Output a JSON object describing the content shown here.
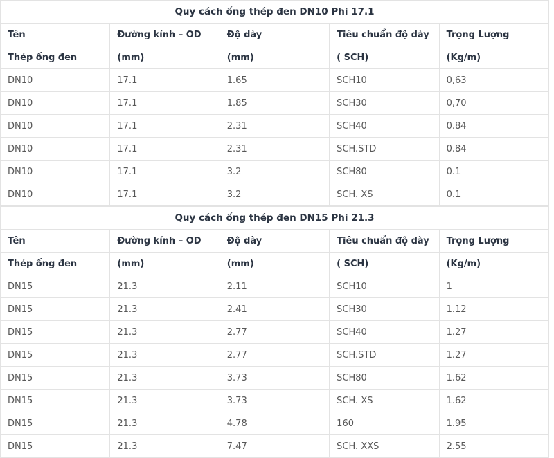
{
  "page": {
    "background_color": "#ffffff",
    "border_color": "#e3e3e3",
    "heading_text_color": "#2b3442",
    "body_text_color": "#575757"
  },
  "tables": [
    {
      "title": "Quy cách ống thép đen DN10 Phi 17.1",
      "header_row1": [
        "Tên",
        "Đường kính – OD",
        "Độ dày",
        "Tiêu chuẩn độ dày",
        "Trọng Lượng"
      ],
      "header_row2": [
        "Thép ống đen",
        "(mm)",
        "(mm)",
        "( SCH)",
        "(Kg/m)"
      ],
      "rows": [
        [
          "DN10",
          "17.1",
          "1.65",
          "SCH10",
          "0,63"
        ],
        [
          "DN10",
          "17.1",
          "1.85",
          "SCH30",
          "0,70"
        ],
        [
          "DN10",
          "17.1",
          "2.31",
          "SCH40",
          "0.84"
        ],
        [
          "DN10",
          "17.1",
          "2.31",
          "SCH.STD",
          "0.84"
        ],
        [
          "DN10",
          "17.1",
          "3.2",
          "SCH80",
          "0.1"
        ],
        [
          "DN10",
          "17.1",
          "3.2",
          "SCH. XS",
          "0.1"
        ]
      ]
    },
    {
      "title": "Quy cách ống thép đen DN15 Phi 21.3",
      "header_row1": [
        "Tên",
        "Đường kính – OD",
        "Độ dày",
        "Tiêu chuẩn độ dày",
        "Trọng Lượng"
      ],
      "header_row2": [
        "Thép ống đen",
        "(mm)",
        "(mm)",
        "( SCH)",
        "(Kg/m)"
      ],
      "rows": [
        [
          "DN15",
          "21.3",
          "2.11",
          "SCH10",
          "1"
        ],
        [
          "DN15",
          "21.3",
          "2.41",
          "SCH30",
          "1.12"
        ],
        [
          "DN15",
          "21.3",
          "2.77",
          "SCH40",
          "1.27"
        ],
        [
          "DN15",
          "21.3",
          "2.77",
          "SCH.STD",
          "1.27"
        ],
        [
          "DN15",
          "21.3",
          "3.73",
          "SCH80",
          "1.62"
        ],
        [
          "DN15",
          "21.3",
          "3.73",
          "SCH. XS",
          "1.62"
        ],
        [
          "DN15",
          "21.3",
          "4.78",
          "160",
          "1.95"
        ],
        [
          "DN15",
          "21.3",
          "7.47",
          "SCH. XXS",
          "2.55"
        ]
      ]
    }
  ]
}
